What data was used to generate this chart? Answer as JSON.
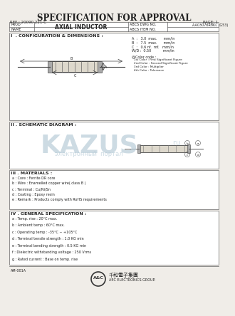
{
  "title": "SPECIFICATION FOR APPROVAL",
  "ref": "REF : 20090 221-C",
  "page": "PAGE: 1",
  "prod_label": "PROD",
  "name_label": "NAME",
  "product_name": "AXIAL INDUCTOR",
  "abcs_dwg_no_label": "ABCS DWG NO.",
  "abcs_item_no_label": "ABCS ITEM NO.",
  "dwg_no_value": "AA03076R8KL (G53)",
  "section1": "I  . CONFIGURATION & DIMENSIONS :",
  "dim_a": "A  :   3.0  max.      mm/in",
  "dim_b": "B  :   7.5  max.      mm/in",
  "dim_c": "C  :   0.6 nf.  mf.   mm/in",
  "dim_wd": "W/D :  0.50           mm/in",
  "color_code_title": "@Color code :",
  "color1": "1st Color : First Significant Figure",
  "color2": "2nd Color : Second Significant Figure",
  "color3": "3rd Color : Multiplier",
  "color4": "4th Color : Tolerance",
  "section2": "II . SCHEMATIC DIAGRAM :",
  "section3": "III . MATERIALS :",
  "mat_a": "a : Core : Ferrite DR core",
  "mat_b": "b : Wire : Enamelled copper wire( class B )",
  "mat_c": "c : Terminal : Cu/Ni/Sn",
  "mat_d": "d : Coating : Epoxy resin",
  "mat_e": "e : Remark : Products comply with RoHS requirements",
  "section4": "IV . GENERAL SPECIFICATION :",
  "gen_a": "a : Temp. rise : 20°C max.",
  "gen_b": "b : Ambient temp : 60°C max.",
  "gen_c": "c : Operating temp : -35°C ~ +105°C",
  "gen_d": "d : Terminal tensile strength : 1.0 KG min",
  "gen_e": "e : Terminal bending strength : 0.5 KG min",
  "gen_f": "f : Dielectric withstanding voltage : 250 Vrms",
  "gen_g": "g : Rated current : Base on temp. rise",
  "footer_left": "AM-001A",
  "footer_company": "千和電子集團",
  "footer_sub": "AEC ELECTRONICS GROUP.",
  "bg_color": "#f0ede8",
  "border_color": "#666666",
  "text_color": "#222222",
  "watermark_text": "KAZUS",
  "watermark_sub": "электронный  портал",
  "watermark_color": "#b8ccd8"
}
